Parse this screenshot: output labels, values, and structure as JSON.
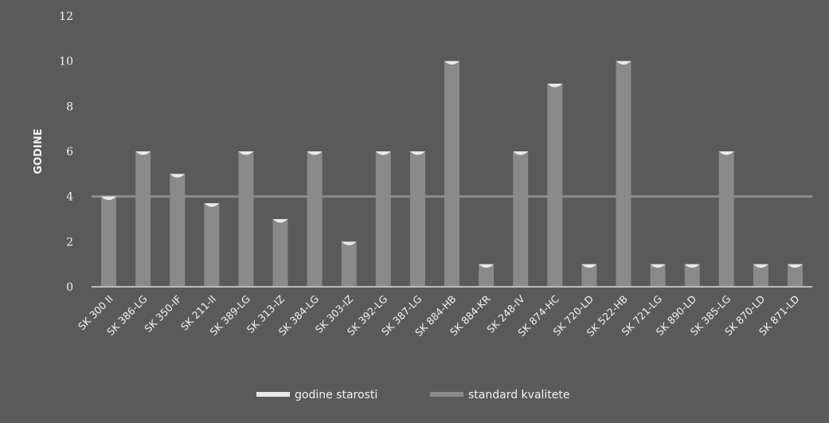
{
  "colors": {
    "background": "#5a5a5a",
    "bar": "#8a8a8a",
    "bar_cap": "#e9e9e9",
    "standard_line": "#8c8c8c",
    "axis": "#bdbdbd",
    "text": "#f2f2f2",
    "gridline": "#666666"
  },
  "chart_data": {
    "type": "bar",
    "title": "",
    "xlabel": "",
    "ylabel": "GODINE",
    "ylim": [
      0,
      12
    ],
    "yticks": [
      0,
      2,
      4,
      6,
      8,
      10,
      12
    ],
    "grid": false,
    "legend_position": "bottom",
    "categories": [
      "SK 300 II",
      "SK 386-LG",
      "SK 350-IF",
      "SK 211-II",
      "SK 389-LG",
      "SK 313-IZ",
      "SK 384-LG",
      "SK 303-IZ",
      "SK 392-LG",
      "SK 387-LG",
      "SK 884-HB",
      "SK 884-KR",
      "SK 248-IV",
      "SK 874-HC",
      "SK 720-LD",
      "SK 522-HB",
      "SK 721-LG",
      "SK 890-LD",
      "SK 385-LG",
      "SK 870-LD",
      "SK 871-LD"
    ],
    "series": [
      {
        "name": "godine starosti",
        "type": "bar",
        "values": [
          4,
          6,
          5,
          3.7,
          6,
          3,
          6,
          2,
          6,
          6,
          10,
          1,
          6,
          9,
          1,
          10,
          1,
          1,
          6,
          1,
          1
        ]
      },
      {
        "name": "standard kvalitete",
        "type": "line",
        "values": [
          4,
          4,
          4,
          4,
          4,
          4,
          4,
          4,
          4,
          4,
          4,
          4,
          4,
          4,
          4,
          4,
          4,
          4,
          4,
          4,
          4
        ]
      }
    ]
  }
}
